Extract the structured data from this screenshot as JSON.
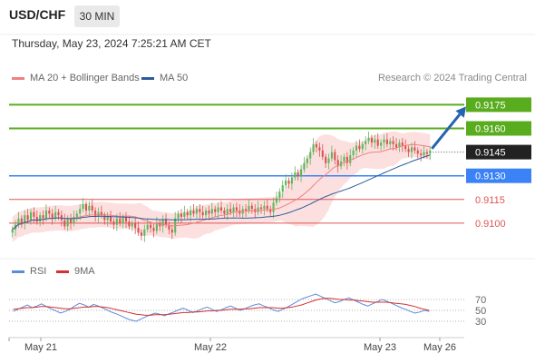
{
  "header": {
    "symbol": "USD/CHF",
    "timeframe": "30 MIN",
    "datetime": "Thursday, May 23, 2024 7:25:21 AM CET"
  },
  "legend": {
    "ma20_label": "MA 20 + Bollinger Bands",
    "ma50_label": "MA 50",
    "credit": "Research © 2024 Trading Central"
  },
  "rsi_legend": {
    "rsi_label": "RSI",
    "ma_label": "9MA"
  },
  "colors": {
    "candle_up": "#5cb85c",
    "candle_down": "#d9534f",
    "ma20": "#f08080",
    "ma50": "#2e5a9c",
    "bollinger_fill": "#fbd5d5",
    "resistance": "#5aac1f",
    "support": "#3b82f6",
    "current": "#222222",
    "minor_level": "#e05555",
    "rsi": "#5b8dd9",
    "rsi_ma": "#d63030",
    "arrow": "#2563b0"
  },
  "chart_data": [
    {
      "type": "candlestick",
      "title": "",
      "ylim": [
        0.9085,
        0.9185
      ],
      "price_levels": [
        {
          "value": 0.9175,
          "label": "0.9175",
          "kind": "resistance"
        },
        {
          "value": 0.916,
          "label": "0.9160",
          "kind": "resistance"
        },
        {
          "value": 0.9145,
          "label": "0.9145",
          "kind": "current"
        },
        {
          "value": 0.913,
          "label": "0.9130",
          "kind": "support"
        },
        {
          "value": 0.9115,
          "label": "0.9115",
          "kind": "minor"
        },
        {
          "value": 0.91,
          "label": "0.9100",
          "kind": "minor"
        }
      ],
      "x_tick_labels": [
        "May 21",
        "May 22",
        "May 23",
        "May 26"
      ],
      "series": [
        {
          "name": "MA 20 + Bollinger Bands"
        },
        {
          "name": "MA 50"
        }
      ],
      "close": [
        0.9096,
        0.9099,
        0.9103,
        0.91,
        0.9105,
        0.9102,
        0.9107,
        0.9104,
        0.9101,
        0.9105,
        0.9103,
        0.9108,
        0.9106,
        0.9103,
        0.9107,
        0.9105,
        0.9102,
        0.9098,
        0.9103,
        0.91,
        0.9104,
        0.9106,
        0.9109,
        0.9112,
        0.9108,
        0.9111,
        0.9108,
        0.9104,
        0.9107,
        0.9105,
        0.9102,
        0.9104,
        0.9101,
        0.9099,
        0.9103,
        0.91,
        0.9104,
        0.9101,
        0.9098,
        0.91,
        0.9097,
        0.9094,
        0.9092,
        0.9096,
        0.9099,
        0.9097,
        0.9095,
        0.91,
        0.9098,
        0.9102,
        0.9099,
        0.9096,
        0.9094,
        0.9103,
        0.9106,
        0.9104,
        0.9107,
        0.9105,
        0.9108,
        0.9106,
        0.9109,
        0.9107,
        0.9105,
        0.9108,
        0.9106,
        0.9109,
        0.9107,
        0.911,
        0.9108,
        0.9106,
        0.9109,
        0.9107,
        0.911,
        0.9108,
        0.9106,
        0.9109,
        0.9108,
        0.9111,
        0.9109,
        0.9107,
        0.911,
        0.9109,
        0.9111,
        0.9109,
        0.9107,
        0.9113,
        0.9116,
        0.912,
        0.9124,
        0.9127,
        0.9125,
        0.9129,
        0.9132,
        0.913,
        0.9134,
        0.9138,
        0.9141,
        0.9145,
        0.915,
        0.9148,
        0.9146,
        0.9142,
        0.9138,
        0.9141,
        0.9145,
        0.914,
        0.9136,
        0.9139,
        0.9142,
        0.9138,
        0.9143,
        0.9146,
        0.9149,
        0.9147,
        0.915,
        0.9152,
        0.9154,
        0.9151,
        0.9153,
        0.9149,
        0.9151,
        0.9153,
        0.915,
        0.9152,
        0.915,
        0.9148,
        0.9151,
        0.9149,
        0.9147,
        0.9145,
        0.9148,
        0.9146,
        0.9144,
        0.9143,
        0.9145,
        0.9144,
        0.9146
      ],
      "arrow_target": 0.9175
    },
    {
      "type": "line",
      "title": "",
      "ylim": [
        0,
        100
      ],
      "y_ticks": [
        70,
        50,
        30
      ],
      "series": [
        {
          "name": "RSI",
          "values": [
            48,
            52,
            56,
            60,
            55,
            58,
            62,
            57,
            53,
            49,
            45,
            48,
            52,
            58,
            63,
            60,
            56,
            61,
            58,
            54,
            50,
            46,
            43,
            39,
            35,
            32,
            30,
            34,
            38,
            42,
            45,
            43,
            40,
            44,
            47,
            51,
            54,
            50,
            46,
            49,
            53,
            56,
            52,
            48,
            51,
            55,
            58,
            54,
            50,
            53,
            57,
            60,
            62,
            58,
            55,
            51,
            48,
            52,
            56,
            61,
            66,
            71,
            74,
            77,
            80,
            76,
            72,
            68,
            64,
            66,
            70,
            73,
            69,
            65,
            61,
            58,
            62,
            66,
            70,
            67,
            63,
            59,
            55,
            52,
            48,
            45,
            47,
            50,
            48
          ]
        },
        {
          "name": "9MA",
          "values": [
            52,
            53,
            54,
            55,
            55,
            56,
            57,
            57,
            56,
            55,
            54,
            53,
            53,
            54,
            55,
            56,
            56,
            57,
            57,
            56,
            55,
            53,
            51,
            49,
            47,
            45,
            43,
            42,
            41,
            41,
            42,
            42,
            42,
            43,
            44,
            45,
            46,
            46,
            47,
            47,
            48,
            49,
            49,
            50,
            50,
            51,
            52,
            52,
            52,
            53,
            53,
            54,
            55,
            55,
            55,
            55,
            54,
            54,
            55,
            56,
            58,
            60,
            63,
            66,
            69,
            71,
            72,
            72,
            71,
            70,
            70,
            69,
            69,
            68,
            67,
            66,
            65,
            65,
            65,
            65,
            64,
            63,
            62,
            61,
            59,
            57,
            54,
            52,
            50
          ]
        }
      ]
    }
  ]
}
